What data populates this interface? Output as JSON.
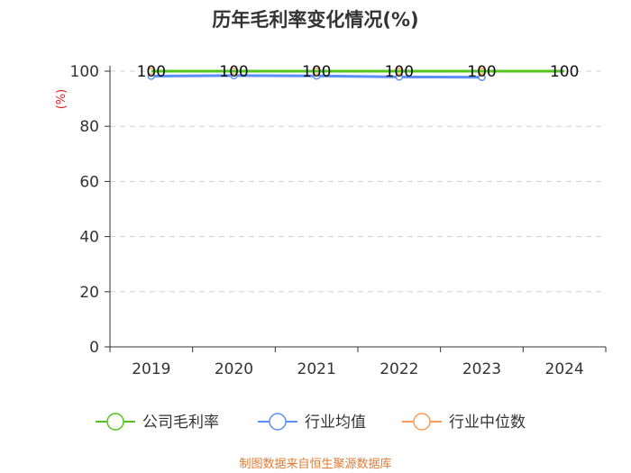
{
  "title": "历年毛利率变化情况(%)",
  "source": "制图数据来自恒生聚源数据库",
  "chart_data": {
    "type": "line",
    "title": "历年毛利率变化情况(%)",
    "ylabel": "(%)",
    "xlabel": "",
    "ylim": [
      0,
      100
    ],
    "yticks": [
      0,
      20,
      40,
      60,
      80,
      100
    ],
    "categories": [
      "2019",
      "2020",
      "2021",
      "2022",
      "2023",
      "2024"
    ],
    "grid": true,
    "legend_position": "bottom",
    "series": [
      {
        "name": "公司毛利率",
        "color": "#52c41a",
        "values": [
          100,
          100,
          100,
          100,
          100,
          100
        ],
        "labels": [
          "100",
          "100",
          "100",
          "100",
          "100",
          "100"
        ]
      },
      {
        "name": "行业均值",
        "color": "#5b8ff9",
        "values": [
          98.2,
          98.4,
          98.3,
          97.9,
          97.8,
          null
        ]
      },
      {
        "name": "行业中位数",
        "color": "#ff9a5c",
        "values": [
          100,
          100,
          100,
          100,
          100,
          null
        ]
      }
    ]
  }
}
